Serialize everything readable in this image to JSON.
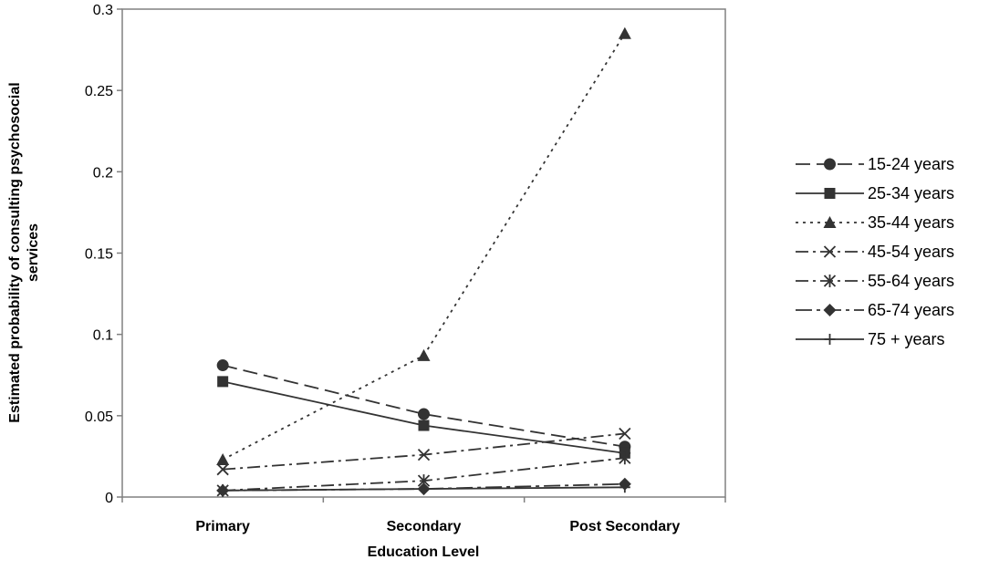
{
  "chart_data": {
    "type": "line",
    "xlabel": "Education Level",
    "ylabel_lines": [
      "Estimated probability of consulting psychosocial",
      "services"
    ],
    "categories": [
      "Primary",
      "Secondary",
      "Post Secondary"
    ],
    "ylim": [
      0,
      0.3
    ],
    "yticks": [
      0,
      0.05,
      0.1,
      0.15,
      0.2,
      0.25,
      0.3
    ],
    "ytick_labels": [
      "0",
      "0.05",
      "0.1",
      "0.15",
      "0.2",
      "0.25",
      "0.3"
    ],
    "grid": false,
    "legend_position": "right",
    "series": [
      {
        "name": "15-24 years",
        "values": [
          0.081,
          0.051,
          0.031
        ],
        "marker": "circle",
        "dash": "long-dash"
      },
      {
        "name": "25-34 years",
        "values": [
          0.071,
          0.044,
          0.027
        ],
        "marker": "square",
        "dash": "solid"
      },
      {
        "name": "35-44 years",
        "values": [
          0.023,
          0.087,
          0.285
        ],
        "marker": "triangle",
        "dash": "dotted"
      },
      {
        "name": "45-54 years",
        "values": [
          0.017,
          0.026,
          0.039
        ],
        "marker": "x",
        "dash": "dash-dot"
      },
      {
        "name": "55-64 years",
        "values": [
          0.004,
          0.01,
          0.024
        ],
        "marker": "star",
        "dash": "dash-dot"
      },
      {
        "name": "65-74 years",
        "values": [
          0.004,
          0.005,
          0.008
        ],
        "marker": "diamond",
        "dash": "long-dash-dot"
      },
      {
        "name": "75 + years",
        "values": [
          0.004,
          0.005,
          0.006
        ],
        "marker": "plus",
        "dash": "solid"
      }
    ]
  }
}
